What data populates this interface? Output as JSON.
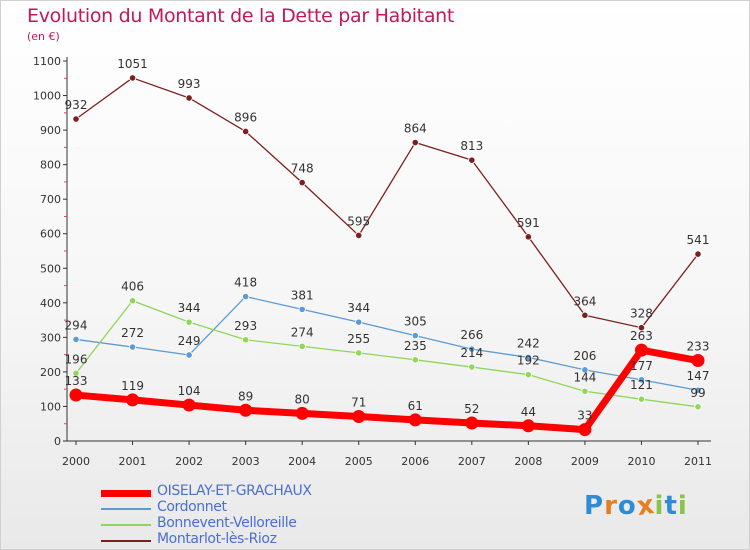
{
  "chart_data": {
    "type": "line",
    "title": "Evolution du Montant de la Dette par Habitant",
    "subtitle": "(en €)",
    "xlabel": "",
    "ylabel": "",
    "x": [
      "2000",
      "2001",
      "2002",
      "2003",
      "2004",
      "2005",
      "2006",
      "2007",
      "2008",
      "2009",
      "2010",
      "2011"
    ],
    "ylim": [
      0,
      1100
    ],
    "yticks": [
      0,
      100,
      200,
      300,
      400,
      500,
      600,
      700,
      800,
      900,
      1000,
      1100
    ],
    "grid": false,
    "legend_position": "bottom-left",
    "series": [
      {
        "name": "Montarlot-lès-Rioz",
        "color": "#7b1f1f",
        "values": [
          932,
          1051,
          993,
          896,
          748,
          595,
          864,
          813,
          591,
          364,
          328,
          541
        ]
      },
      {
        "name": "Cordonnet",
        "color": "#5b9bd5",
        "values": [
          294,
          272,
          249,
          418,
          381,
          344,
          305,
          266,
          242,
          206,
          177,
          147
        ]
      },
      {
        "name": "Bonnevent-Velloreille",
        "color": "#8fd65a",
        "values": [
          196,
          406,
          344,
          293,
          274,
          255,
          235,
          214,
          192,
          144,
          121,
          99
        ]
      },
      {
        "name": "OISELAY-ET-GRACHAUX",
        "color": "#ff0000",
        "values": [
          133,
          119,
          104,
          89,
          80,
          71,
          61,
          52,
          44,
          33,
          263,
          233
        ]
      }
    ],
    "legend_order": [
      "OISELAY-ET-GRACHAUX",
      "Cordonnet",
      "Bonnevent-Velloreille",
      "Montarlot-lès-Rioz"
    ]
  },
  "brand": {
    "text": "Proxiti",
    "letters": [
      "P",
      "r",
      "o",
      "x",
      "i",
      "t",
      "i"
    ],
    "colors": [
      "#2e8bd6",
      "#e67e22",
      "#2e8bd6",
      "#e67e22",
      "#8bc34a",
      "#2e8bd6",
      "#8bc34a"
    ]
  }
}
